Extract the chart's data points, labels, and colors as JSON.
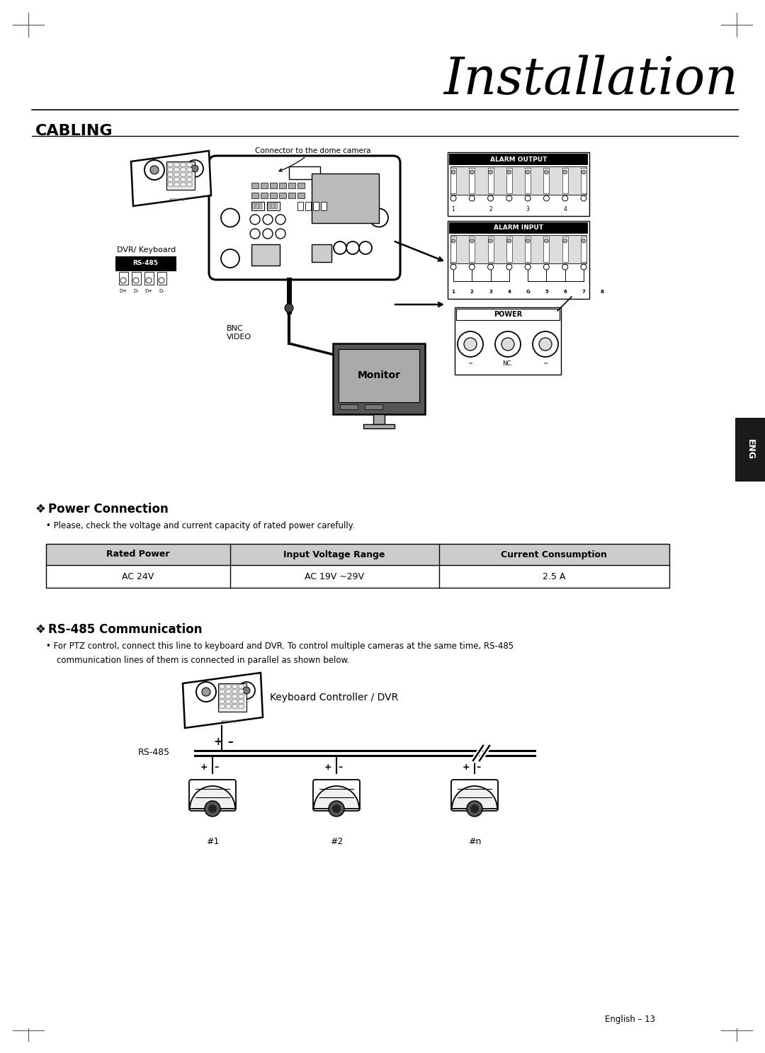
{
  "page_title": "Installation",
  "section1_title": "CABLING",
  "section2_title": "Power Connection",
  "section3_title": "RS-485 Communication",
  "power_bullet": "Please, check the voltage and current capacity of rated power carefully.",
  "rs485_line1": "For PTZ control, connect this line to keyboard and DVR. To control multiple cameras at the same time, RS-485",
  "rs485_line2": "communication lines of them is connected in parallel as shown below.",
  "table_headers": [
    "Rated Power",
    "Input Voltage Range",
    "Current Consumption"
  ],
  "table_row": [
    "AC 24V",
    "AC 19V ~29V",
    "2.5 A"
  ],
  "footer": "English – 13",
  "bg_color": "#ffffff",
  "text_color": "#000000",
  "header_bg": "#cccccc",
  "eng_tab_color": "#1a1a1a",
  "alarm_output_label": "ALARM OUTPUT",
  "alarm_input_label": "ALARM INPUT",
  "power_label": "POWER",
  "nc_label": "NC.",
  "connector_label": "Connector to the dome camera",
  "bnc_label": "BNC\nVIDEO",
  "monitor_label": "Monitor",
  "dvr_keyboard_label": "DVR/ Keyboard",
  "rs485_small": "RS-485",
  "keyboard_dvr_label": "Keyboard Controller / DVR",
  "rs485_bus_label": "RS-485",
  "cam_labels": [
    "#1",
    "#2",
    "#n"
  ]
}
